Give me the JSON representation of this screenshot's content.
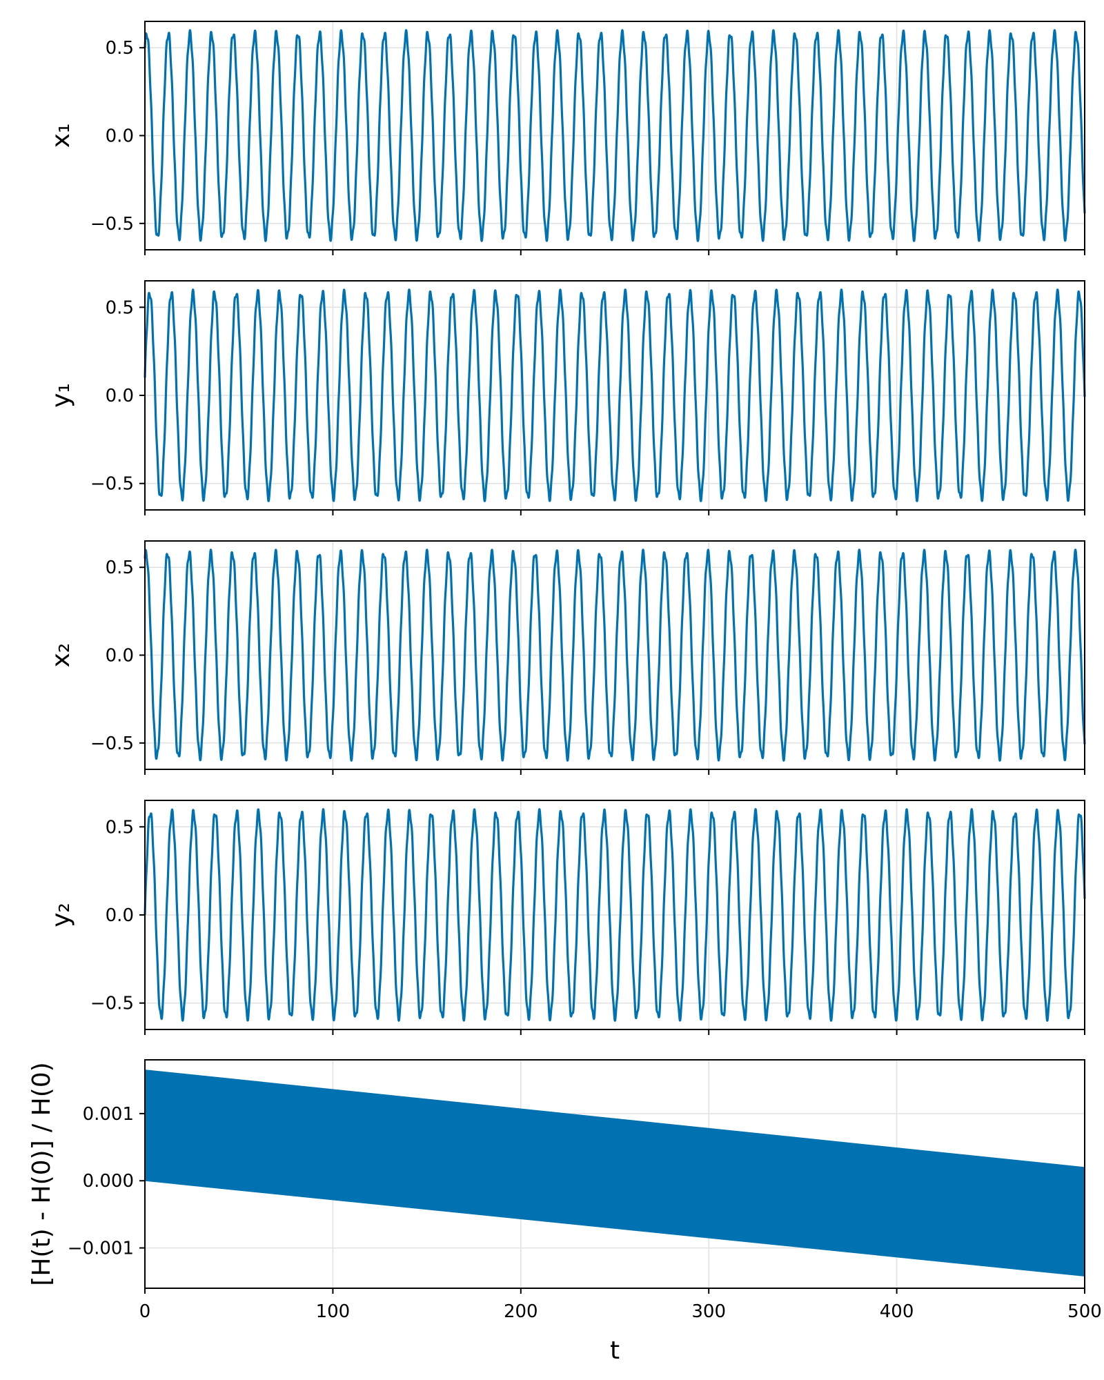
{
  "chart_data": [
    {
      "type": "line",
      "ylabel": "x₁",
      "xlim": [
        0,
        500
      ],
      "ylim": [
        -0.65,
        0.65
      ],
      "yticks": [
        -0.5,
        0.0,
        0.5
      ],
      "ytick_labels": [
        "−0.5",
        "0.0",
        "0.5"
      ],
      "grid": true,
      "series": [
        {
          "color": "#0072b2",
          "amplitude": 0.58,
          "period": 11.5,
          "initial": 0.5,
          "samples": [
            [
              0,
              0.5
            ],
            [
              500,
              -0.58
            ]
          ]
        }
      ]
    },
    {
      "type": "line",
      "ylabel": "y₁",
      "xlim": [
        0,
        500
      ],
      "ylim": [
        -0.65,
        0.65
      ],
      "yticks": [
        -0.5,
        0.0,
        0.5
      ],
      "ytick_labels": [
        "−0.5",
        "0.0",
        "0.5"
      ],
      "grid": true,
      "series": [
        {
          "color": "#0072b2",
          "amplitude": 0.58,
          "period": 11.5,
          "initial": 0.1,
          "samples": [
            [
              0,
              0.1
            ],
            [
              500,
              0.3
            ]
          ]
        }
      ]
    },
    {
      "type": "line",
      "ylabel": "x₂",
      "xlim": [
        0,
        500
      ],
      "ylim": [
        -0.65,
        0.65
      ],
      "yticks": [
        -0.5,
        0.0,
        0.5
      ],
      "ytick_labels": [
        "−0.5",
        "0.0",
        "0.5"
      ],
      "grid": true,
      "series": [
        {
          "color": "#0072b2",
          "amplitude": 0.58,
          "period": 11.5,
          "initial": 0.55,
          "samples": [
            [
              0,
              0.55
            ],
            [
              500,
              -0.58
            ]
          ]
        }
      ]
    },
    {
      "type": "line",
      "ylabel": "y₂",
      "xlim": [
        0,
        500
      ],
      "ylim": [
        -0.65,
        0.65
      ],
      "yticks": [
        -0.5,
        0.0,
        0.5
      ],
      "ytick_labels": [
        "−0.5",
        "0.0",
        "0.5"
      ],
      "grid": true,
      "series": [
        {
          "color": "#0072b2",
          "amplitude": 0.58,
          "period": 11.5,
          "initial": 0.0,
          "samples": [
            [
              0,
              0.0
            ],
            [
              500,
              0.25
            ]
          ]
        }
      ]
    },
    {
      "type": "area",
      "ylabel": "[H(t) - H(0)] / H(0)",
      "xlabel": "t",
      "xlim": [
        0,
        500
      ],
      "ylim": [
        -0.0016,
        0.0018
      ],
      "xticks": [
        0,
        100,
        200,
        300,
        400,
        500
      ],
      "xtick_labels": [
        "0",
        "100",
        "200",
        "300",
        "400",
        "500"
      ],
      "yticks": [
        -0.001,
        0.0,
        0.001
      ],
      "ytick_labels": [
        "−0.001",
        "0.000",
        "0.001"
      ],
      "grid": true,
      "series": [
        {
          "color": "#0072b2",
          "upper": [
            [
              0,
              0.00165
            ],
            [
              500,
              0.0002
            ]
          ],
          "lower": [
            [
              0,
              0.0
            ],
            [
              500,
              -0.00142
            ]
          ]
        }
      ]
    }
  ]
}
